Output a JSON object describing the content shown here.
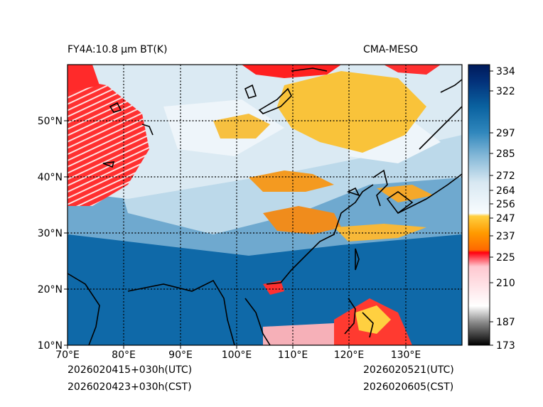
{
  "title_left": "FY4A:10.8 µm BT(K)",
  "title_right": "CMA-MESO",
  "footer": {
    "init_utc": "2026020415+030h(UTC)",
    "init_cst": "2026020423+030h(CST)",
    "valid_utc": "2026020521(UTC)",
    "valid_cst": "2026020605(CST)"
  },
  "map": {
    "variable": "Brightness Temperature 10.8 µm",
    "lon_range": [
      70,
      140
    ],
    "lat_range": [
      10,
      60
    ],
    "lon_labels": [
      "70°E",
      "80°E",
      "90°E",
      "100°E",
      "110°E",
      "120°E",
      "130°E"
    ],
    "lat_labels": [
      "10°N",
      "20°N",
      "30°N",
      "40°N",
      "50°N"
    ]
  },
  "colorbar": {
    "ticks": [
      "173",
      "187",
      "210",
      "225",
      "237",
      "247",
      "256",
      "264",
      "272",
      "285",
      "297",
      "322",
      "334"
    ],
    "colors": {
      "cold_black": "#000000",
      "gray": "#d0d0d0",
      "pink": "#ffd0d8",
      "red": "#ff0010",
      "orange": "#ff8a00",
      "yellow": "#ffc020",
      "white_blue": "#e8f2f8",
      "light_blue": "#a9d0e6",
      "mid_blue": "#3d8fc0",
      "deep_blue": "#0a66a8",
      "navy": "#001a5a"
    }
  }
}
